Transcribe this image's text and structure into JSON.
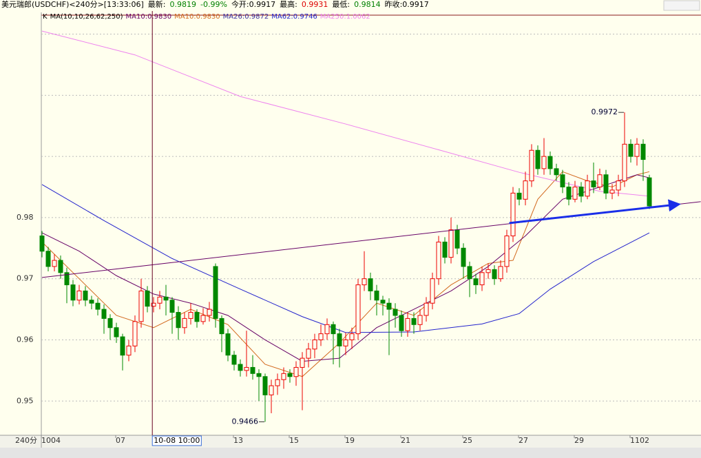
{
  "chart_data": {
    "type": "candlestick",
    "header": [
      {
        "text": "美元瑞郎(USDCHF)<240分>[13:33:06]",
        "color": "#000000"
      },
      {
        "text": "最新:",
        "color": "#000000"
      },
      {
        "text": "0.9819",
        "color": "#008000"
      },
      {
        "text": "-0.99%",
        "color": "#008000"
      },
      {
        "text": "今开:0.9917",
        "color": "#000000"
      },
      {
        "text": "最高:",
        "color": "#000000"
      },
      {
        "text": "0.9931",
        "color": "#dd0000"
      },
      {
        "text": "最低:",
        "color": "#000000"
      },
      {
        "text": "0.9814",
        "color": "#008000"
      },
      {
        "text": "昨收:0.9917",
        "color": "#000000"
      }
    ],
    "legend": [
      {
        "text": "K",
        "color": "#000000"
      },
      {
        "text": "MA(10,10,26,62,250)",
        "color": "#000000"
      },
      {
        "text": "MA10:0.9830",
        "color": "#660066"
      },
      {
        "text": "MA10:0.9830",
        "color": "#d2691e"
      },
      {
        "text": "MA26:0.9872",
        "color": "#3a2fa0"
      },
      {
        "text": "MA62:0.9746",
        "color": "#2222cc"
      },
      {
        "text": "MA250:1.0062",
        "color": "#ee82ee"
      }
    ],
    "open": [
      0.977,
      0.9745,
      0.972,
      0.973,
      0.971,
      0.969,
      0.9665,
      0.968,
      0.9665,
      0.966,
      0.965,
      0.9635,
      0.962,
      0.9605,
      0.9575,
      0.959,
      0.963,
      0.968,
      0.9655,
      0.966,
      0.967,
      0.9665,
      0.9645,
      0.962,
      0.9635,
      0.9645,
      0.963,
      0.964,
      0.972,
      0.9635,
      0.961,
      0.9575,
      0.956,
      0.955,
      0.9555,
      0.9545,
      0.954,
      0.951,
      0.9525,
      0.9535,
      0.9545,
      0.954,
      0.9555,
      0.957,
      0.9585,
      0.96,
      0.961,
      0.9625,
      0.961,
      0.959,
      0.96,
      0.961,
      0.969,
      0.97,
      0.968,
      0.9665,
      0.966,
      0.965,
      0.964,
      0.9615,
      0.9635,
      0.9625,
      0.964,
      0.966,
      0.97,
      0.976,
      0.9735,
      0.978,
      0.975,
      0.972,
      0.97,
      0.969,
      0.971,
      0.9715,
      0.97,
      0.972,
      0.977,
      0.984,
      0.983,
      0.986,
      0.991,
      0.988,
      0.99,
      0.988,
      0.987,
      0.985,
      0.983,
      0.985,
      0.9835,
      0.986,
      0.985,
      0.987,
      0.984,
      0.9845,
      0.986,
      0.992,
      0.99,
      0.992,
      0.9865
    ],
    "high": [
      0.9778,
      0.9752,
      0.974,
      0.9738,
      0.9718,
      0.9698,
      0.969,
      0.9688,
      0.9672,
      0.9668,
      0.9658,
      0.9642,
      0.9628,
      0.961,
      0.96,
      0.964,
      0.97,
      0.9688,
      0.967,
      0.968,
      0.969,
      0.967,
      0.9655,
      0.9645,
      0.966,
      0.965,
      0.9652,
      0.9662,
      0.9725,
      0.964,
      0.9618,
      0.9582,
      0.9568,
      0.9615,
      0.9575,
      0.9552,
      0.9545,
      0.9535,
      0.9545,
      0.9555,
      0.9552,
      0.9565,
      0.958,
      0.9595,
      0.961,
      0.9625,
      0.9635,
      0.963,
      0.9618,
      0.9612,
      0.962,
      0.97,
      0.9745,
      0.971,
      0.969,
      0.9672,
      0.9668,
      0.966,
      0.9648,
      0.9645,
      0.9645,
      0.965,
      0.967,
      0.971,
      0.977,
      0.9768,
      0.98,
      0.9788,
      0.9758,
      0.9728,
      0.9708,
      0.972,
      0.9725,
      0.9722,
      0.973,
      0.978,
      0.985,
      0.9848,
      0.9875,
      0.992,
      0.9918,
      0.993,
      0.9908,
      0.9888,
      0.9878,
      0.9858,
      0.986,
      0.9858,
      0.987,
      0.989,
      0.988,
      0.9878,
      0.9855,
      0.987,
      0.9972,
      0.9928,
      0.993,
      0.9928,
      0.987
    ],
    "low": [
      0.9735,
      0.9712,
      0.9712,
      0.97,
      0.966,
      0.9655,
      0.9658,
      0.9655,
      0.965,
      0.964,
      0.961,
      0.96,
      0.9595,
      0.955,
      0.9565,
      0.958,
      0.962,
      0.9645,
      0.9645,
      0.965,
      0.964,
      0.961,
      0.96,
      0.961,
      0.9625,
      0.962,
      0.9625,
      0.963,
      0.962,
      0.958,
      0.9565,
      0.955,
      0.954,
      0.954,
      0.9535,
      0.95,
      0.9466,
      0.948,
      0.951,
      0.952,
      0.953,
      0.9525,
      0.9485,
      0.9555,
      0.957,
      0.959,
      0.96,
      0.956,
      0.9555,
      0.9575,
      0.9585,
      0.96,
      0.968,
      0.9665,
      0.964,
      0.964,
      0.9575,
      0.962,
      0.9605,
      0.9605,
      0.961,
      0.9615,
      0.963,
      0.965,
      0.969,
      0.9725,
      0.9725,
      0.974,
      0.97,
      0.967,
      0.9675,
      0.968,
      0.97,
      0.969,
      0.9695,
      0.971,
      0.976,
      0.982,
      0.982,
      0.985,
      0.987,
      0.987,
      0.987,
      0.986,
      0.984,
      0.982,
      0.9825,
      0.9825,
      0.983,
      0.984,
      0.9845,
      0.983,
      0.983,
      0.9835,
      0.985,
      0.989,
      0.9885,
      0.986,
      0.9814
    ],
    "close": [
      0.9745,
      0.972,
      0.973,
      0.971,
      0.969,
      0.9665,
      0.968,
      0.9665,
      0.966,
      0.965,
      0.9635,
      0.962,
      0.9605,
      0.9575,
      0.959,
      0.963,
      0.968,
      0.9655,
      0.966,
      0.967,
      0.9665,
      0.9645,
      0.962,
      0.9635,
      0.9645,
      0.963,
      0.964,
      0.965,
      0.9635,
      0.961,
      0.9575,
      0.956,
      0.955,
      0.9555,
      0.9545,
      0.954,
      0.951,
      0.9525,
      0.9535,
      0.9545,
      0.954,
      0.9555,
      0.957,
      0.9585,
      0.96,
      0.961,
      0.9625,
      0.961,
      0.959,
      0.96,
      0.961,
      0.969,
      0.97,
      0.968,
      0.9665,
      0.966,
      0.965,
      0.964,
      0.9615,
      0.9635,
      0.9625,
      0.964,
      0.966,
      0.97,
      0.976,
      0.9735,
      0.978,
      0.975,
      0.972,
      0.97,
      0.969,
      0.971,
      0.9715,
      0.97,
      0.972,
      0.977,
      0.984,
      0.983,
      0.986,
      0.991,
      0.988,
      0.99,
      0.988,
      0.987,
      0.985,
      0.983,
      0.985,
      0.9835,
      0.986,
      0.985,
      0.987,
      0.984,
      0.9845,
      0.986,
      0.992,
      0.99,
      0.992,
      0.9895,
      0.9819
    ],
    "up_color": "#ee0000",
    "down_color": "#008800",
    "ma_lines": [
      {
        "color": "#d2691e",
        "x": [
          0,
          6,
          12,
          18,
          24,
          30,
          36,
          42,
          48,
          54,
          60,
          66,
          72,
          76,
          80,
          84,
          88,
          92,
          96,
          98
        ],
        "values": [
          0.976,
          0.97,
          0.964,
          0.962,
          0.965,
          0.9625,
          0.956,
          0.954,
          0.9595,
          0.966,
          0.964,
          0.969,
          0.9725,
          0.973,
          0.983,
          0.9875,
          0.986,
          0.985,
          0.987,
          0.9875
        ]
      },
      {
        "color": "#660066",
        "x": [
          0,
          6,
          12,
          18,
          24,
          30,
          36,
          42,
          48,
          54,
          60,
          66,
          72,
          78,
          84,
          90,
          96,
          98
        ],
        "values": [
          0.9775,
          0.9745,
          0.9705,
          0.9675,
          0.966,
          0.964,
          0.96,
          0.9565,
          0.957,
          0.962,
          0.965,
          0.968,
          0.972,
          0.977,
          0.983,
          0.985,
          0.987,
          0.9865
        ]
      },
      {
        "color": "#2222cc",
        "x": [
          0,
          10,
          21,
          32,
          42,
          49,
          60,
          71,
          77,
          82,
          89,
          98
        ],
        "values": [
          0.9854,
          0.9795,
          0.9733,
          0.9683,
          0.9638,
          0.9612,
          0.9613,
          0.9626,
          0.9643,
          0.9683,
          0.9728,
          0.9775
        ]
      },
      {
        "color": "#ee82ee",
        "x": [
          0,
          15,
          32,
          49,
          65,
          77,
          90,
          98
        ],
        "values": [
          1.0105,
          1.0066,
          0.9998,
          0.9953,
          0.9908,
          0.9874,
          0.9843,
          0.9835
        ]
      }
    ],
    "trend_lines": [
      {
        "color": "#660066",
        "width": 1,
        "x": [
          0,
          106.3
        ],
        "values": [
          0.9702,
          0.9826
        ]
      },
      {
        "color": "#1a2ee8",
        "width": 3,
        "arrow": true,
        "x": [
          75.4,
          102.1
        ],
        "values": [
          0.9791,
          0.9821
        ]
      }
    ],
    "annotations": [
      {
        "text": "0.9972",
        "index": 94,
        "value": 0.9972
      },
      {
        "text": "0.9466",
        "index": 36,
        "value": 0.9466
      }
    ],
    "period_label": "240分",
    "xlabels": [
      {
        "index": 0,
        "label": "1004"
      },
      {
        "index": 12,
        "label": "07"
      },
      {
        "index": 31,
        "label": "13"
      },
      {
        "index": 40,
        "label": "15"
      },
      {
        "index": 49,
        "label": "19"
      },
      {
        "index": 58,
        "label": "21"
      },
      {
        "index": 68,
        "label": "25"
      },
      {
        "index": 77,
        "label": "27"
      },
      {
        "index": 86,
        "label": "29"
      },
      {
        "index": 95,
        "label": "1102"
      }
    ],
    "cursor": {
      "index": 17.8,
      "label": "10-08 10:00"
    },
    "ylim": [
      0.9444,
      1.0131
    ],
    "yticks": [
      0.95,
      0.96,
      0.97,
      0.98
    ],
    "ygrid_unlabeled": [
      0.99,
      1.0,
      1.01
    ],
    "grid": true
  }
}
